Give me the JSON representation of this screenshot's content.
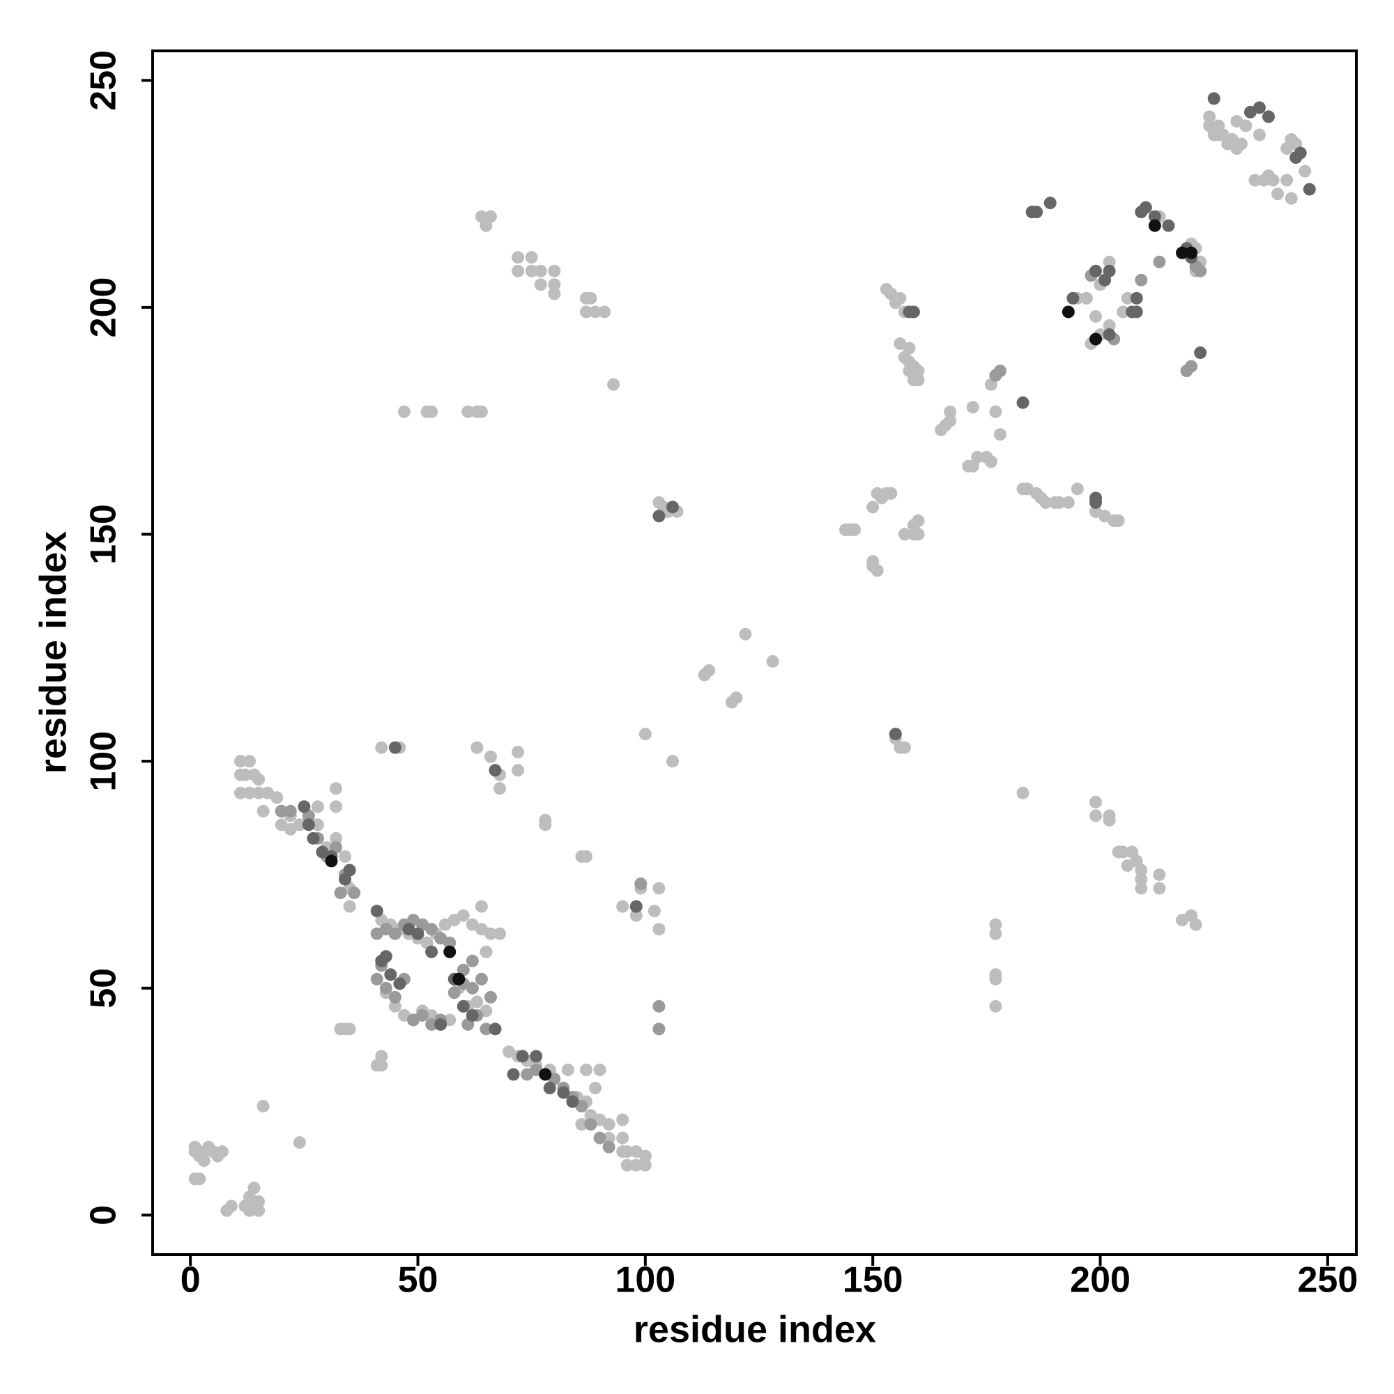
{
  "chart_data": {
    "type": "scatter",
    "xlabel": "residue index",
    "ylabel": "residue index",
    "xlim": [
      -8.3,
      256.3
    ],
    "ylim": [
      -8.7,
      256.5
    ],
    "xticks": [
      0,
      50,
      100,
      150,
      200,
      250
    ],
    "yticks": [
      0,
      50,
      100,
      150,
      200,
      250
    ],
    "series": [
      {
        "color": "#bdbdbd",
        "x": [
          1,
          2,
          3,
          4,
          5,
          6,
          7,
          1,
          2,
          3,
          1,
          8,
          9,
          12,
          13,
          14,
          15,
          13,
          15,
          14,
          16,
          24,
          11,
          13,
          11,
          12,
          14,
          15,
          11,
          13,
          15,
          17,
          16,
          19,
          20,
          20,
          22,
          24,
          22,
          26,
          28,
          28,
          32,
          32,
          32,
          30,
          34,
          34,
          35,
          35,
          33,
          34,
          35,
          42,
          42,
          41,
          42,
          46,
          63,
          66,
          68,
          68,
          72,
          72,
          64,
          68,
          65,
          70,
          72,
          74,
          76,
          79,
          83,
          87,
          90,
          89,
          87,
          88,
          90,
          92,
          95,
          95,
          96,
          98,
          100,
          100,
          96,
          98,
          95,
          92,
          86,
          85,
          99,
          103,
          102,
          95,
          98,
          103,
          78,
          78,
          86,
          87,
          93,
          47,
          52,
          53,
          61,
          63,
          64,
          64,
          66,
          65,
          72,
          75,
          72,
          75,
          77,
          80,
          77,
          80,
          80,
          87,
          88,
          87,
          89,
          91,
          100,
          106,
          103,
          104,
          105,
          107,
          113,
          114,
          119,
          120,
          122,
          128,
          144,
          145,
          146,
          150,
          150,
          151,
          151,
          153,
          150,
          152,
          154,
          157,
          159,
          160,
          159,
          160,
          155,
          157,
          156,
          153,
          154,
          155,
          156,
          157,
          156,
          157,
          158,
          158,
          159,
          160,
          160,
          159,
          158,
          165,
          166,
          167,
          167,
          171,
          172,
          173,
          175,
          176,
          172,
          176,
          177,
          178,
          183,
          184,
          186,
          187,
          188,
          190,
          191,
          193,
          195,
          199,
          201,
          203,
          204,
          183,
          177,
          177,
          177,
          177,
          177,
          199,
          199,
          202,
          202,
          204,
          205,
          206,
          207,
          208,
          209,
          209,
          209,
          213,
          213,
          218,
          220,
          221,
          195,
          197,
          199,
          198,
          200,
          202,
          202,
          200,
          205,
          206,
          210,
          213,
          220,
          221,
          222,
          221,
          224,
          226,
          227,
          228,
          229,
          230,
          232,
          235,
          234,
          236,
          237,
          238,
          239,
          241,
          242,
          242,
          243,
          241,
          245,
          224,
          225,
          226,
          230,
          231,
          42,
          44,
          46,
          48,
          50,
          52,
          54,
          56,
          58,
          60,
          62,
          64,
          66,
          63,
          61,
          65,
          59,
          43,
          45,
          47,
          49,
          51,
          53,
          55,
          57
        ],
        "y": [
          14,
          13,
          14,
          15,
          14,
          13,
          14,
          8,
          8,
          12,
          15,
          1,
          2,
          2,
          4,
          6,
          3,
          1,
          1,
          2,
          24,
          16,
          100,
          100,
          97,
          97,
          97,
          96,
          93,
          93,
          93,
          93,
          89,
          92,
          89,
          86,
          88,
          86,
          85,
          87,
          90,
          86,
          94,
          90,
          83,
          81,
          79,
          75,
          72,
          68,
          41,
          41,
          41,
          35,
          33,
          33,
          103,
          103,
          103,
          101,
          97,
          94,
          102,
          98,
          68,
          62,
          58,
          36,
          35,
          34,
          33,
          32,
          32,
          32,
          32,
          28,
          25,
          22,
          21,
          20,
          21,
          17,
          14,
          14,
          13,
          11,
          11,
          11,
          14,
          17,
          20,
          26,
          72,
          72,
          67,
          68,
          66,
          63,
          87,
          86,
          79,
          79,
          183,
          177,
          177,
          177,
          177,
          177,
          177,
          220,
          220,
          218,
          211,
          211,
          208,
          208,
          208,
          208,
          205,
          205,
          203,
          202,
          202,
          199,
          199,
          199,
          106,
          100,
          157,
          156,
          155,
          155,
          119,
          120,
          113,
          114,
          128,
          122,
          151,
          151,
          151,
          144,
          143,
          142,
          159,
          159,
          156,
          158,
          159,
          150,
          152,
          153,
          150,
          150,
          105,
          103,
          103,
          204,
          203,
          201,
          202,
          199,
          192,
          189,
          188,
          186,
          187,
          186,
          184,
          184,
          191,
          173,
          174,
          177,
          175,
          165,
          165,
          167,
          167,
          166,
          178,
          183,
          177,
          172,
          160,
          160,
          159,
          158,
          157,
          157,
          157,
          157,
          160,
          155,
          154,
          153,
          153,
          93,
          64,
          62,
          53,
          52,
          46,
          91,
          88,
          88,
          87,
          80,
          80,
          77,
          80,
          78,
          76,
          74,
          72,
          75,
          72,
          65,
          66,
          64,
          202,
          202,
          198,
          192,
          194,
          196,
          210,
          205,
          199,
          202,
          222,
          220,
          214,
          213,
          210,
          208,
          240,
          240,
          238,
          236,
          237,
          235,
          240,
          238,
          228,
          228,
          229,
          228,
          225,
          228,
          224,
          237,
          236,
          235,
          230,
          242,
          238,
          238,
          241,
          236,
          65,
          64,
          63,
          62,
          61,
          60,
          62,
          64,
          65,
          66,
          64,
          63,
          62,
          47,
          46,
          45,
          50,
          49,
          46,
          44,
          43,
          45,
          44,
          42,
          43
        ]
      },
      {
        "color": "#9a9a9a",
        "x": [
          20,
          22,
          26,
          28,
          30,
          32,
          34,
          33,
          36,
          41,
          43,
          45,
          47,
          49,
          51,
          53,
          55,
          57,
          45,
          43,
          47,
          41,
          42,
          49,
          51,
          53,
          55,
          58,
          60,
          62,
          64,
          66,
          63,
          61,
          65,
          62,
          60,
          74,
          76,
          80,
          82,
          84,
          86,
          88,
          90,
          92,
          99,
          103,
          103,
          177,
          178,
          198,
          203,
          209,
          213,
          221,
          222,
          219,
          220
        ],
        "y": [
          89,
          89,
          88,
          83,
          79,
          81,
          75,
          71,
          71,
          62,
          63,
          62,
          64,
          65,
          64,
          63,
          61,
          60,
          48,
          50,
          52,
          52,
          55,
          43,
          44,
          42,
          43,
          49,
          51,
          50,
          52,
          48,
          44,
          42,
          41,
          56,
          54,
          31,
          32,
          30,
          28,
          26,
          24,
          20,
          17,
          15,
          73,
          46,
          41,
          185,
          186,
          207,
          193,
          206,
          210,
          209,
          208,
          186,
          187
        ]
      },
      {
        "color": "#666666",
        "x": [
          25,
          26,
          27,
          29,
          31,
          34,
          35,
          41,
          42,
          44,
          43,
          46,
          48,
          50,
          53,
          55,
          58,
          60,
          62,
          67,
          71,
          73,
          76,
          79,
          82,
          84,
          98,
          103,
          106,
          155,
          158,
          159,
          183,
          185,
          186,
          189,
          194,
          199,
          201,
          202,
          202,
          207,
          208,
          208,
          209,
          210,
          212,
          215,
          219,
          220,
          222,
          225,
          233,
          235,
          237,
          243,
          244,
          246,
          199,
          199,
          67,
          45
        ],
        "y": [
          90,
          86,
          83,
          80,
          79,
          74,
          76,
          67,
          56,
          53,
          57,
          51,
          63,
          62,
          58,
          42,
          52,
          46,
          44,
          41,
          31,
          35,
          35,
          28,
          27,
          25,
          68,
          154,
          156,
          106,
          199,
          199,
          179,
          221,
          221,
          223,
          202,
          208,
          206,
          208,
          194,
          199,
          202,
          199,
          221,
          222,
          220,
          218,
          213,
          211,
          190,
          246,
          243,
          244,
          242,
          233,
          234,
          226,
          158,
          157,
          98,
          103
        ]
      },
      {
        "color": "#111111",
        "x": [
          31,
          57,
          59,
          78,
          193,
          199,
          212,
          220,
          218
        ],
        "y": [
          78,
          58,
          52,
          31,
          199,
          193,
          218,
          212,
          212
        ]
      }
    ]
  }
}
